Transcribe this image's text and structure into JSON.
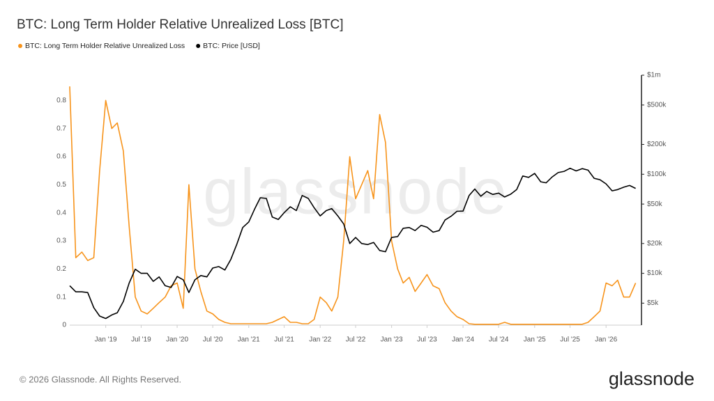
{
  "chart_data": {
    "type": "line",
    "title": "BTC: Long Term Holder Relative Unrealized Loss [BTC]",
    "watermark": "glassnode",
    "footer": "© 2026 Glassnode. All Rights Reserved.",
    "logo": "glassnode",
    "x": [
      "2018-07",
      "2018-08",
      "2018-09",
      "2018-10",
      "2018-11",
      "2018-12",
      "2019-01",
      "2019-02",
      "2019-03",
      "2019-04",
      "2019-05",
      "2019-06",
      "2019-07",
      "2019-08",
      "2019-09",
      "2019-10",
      "2019-11",
      "2019-12",
      "2020-01",
      "2020-02",
      "2020-03",
      "2020-04",
      "2020-05",
      "2020-06",
      "2020-07",
      "2020-08",
      "2020-09",
      "2020-10",
      "2020-11",
      "2020-12",
      "2021-01",
      "2021-02",
      "2021-03",
      "2021-04",
      "2021-05",
      "2021-06",
      "2021-07",
      "2021-08",
      "2021-09",
      "2021-10",
      "2021-11",
      "2021-12",
      "2022-01",
      "2022-02",
      "2022-03",
      "2022-04",
      "2022-05",
      "2022-06",
      "2022-07",
      "2022-08",
      "2022-09",
      "2022-10",
      "2022-11",
      "2022-12",
      "2023-01",
      "2023-02",
      "2023-03",
      "2023-04",
      "2023-05",
      "2023-06",
      "2023-07",
      "2023-08",
      "2023-09",
      "2023-10",
      "2023-11",
      "2023-12",
      "2024-01",
      "2024-02",
      "2024-03",
      "2024-04",
      "2024-05",
      "2024-06",
      "2024-07",
      "2024-08",
      "2024-09",
      "2024-10",
      "2024-11",
      "2024-12",
      "2025-01",
      "2025-02",
      "2025-03",
      "2025-04",
      "2025-05",
      "2025-06",
      "2025-07",
      "2025-08",
      "2025-09",
      "2025-10",
      "2025-11",
      "2025-12",
      "2026-01",
      "2026-02",
      "2026-03",
      "2026-04",
      "2026-05",
      "2026-06"
    ],
    "series": [
      {
        "name": "BTC: Long Term Holder Relative Unrealized Loss",
        "color": "#f7931a",
        "values": [
          0.85,
          0.24,
          0.26,
          0.23,
          0.24,
          0.55,
          0.8,
          0.7,
          0.72,
          0.62,
          0.35,
          0.1,
          0.05,
          0.04,
          0.06,
          0.08,
          0.1,
          0.14,
          0.15,
          0.06,
          0.5,
          0.2,
          0.12,
          0.05,
          0.04,
          0.02,
          0.01,
          0.005,
          0.005,
          0.005,
          0.005,
          0.005,
          0.005,
          0.005,
          0.01,
          0.02,
          0.03,
          0.01,
          0.01,
          0.005,
          0.005,
          0.02,
          0.1,
          0.08,
          0.05,
          0.1,
          0.3,
          0.6,
          0.45,
          0.5,
          0.55,
          0.45,
          0.75,
          0.65,
          0.3,
          0.2,
          0.15,
          0.17,
          0.12,
          0.15,
          0.18,
          0.14,
          0.13,
          0.08,
          0.05,
          0.03,
          0.02,
          0.005,
          0.003,
          0.003,
          0.003,
          0.003,
          0.003,
          0.01,
          0.003,
          0.003,
          0.003,
          0.003,
          0.003,
          0.003,
          0.003,
          0.003,
          0.003,
          0.003,
          0.003,
          0.003,
          0.003,
          0.01,
          0.03,
          0.05,
          0.15,
          0.14,
          0.16,
          0.1,
          0.1,
          0.15
        ]
      },
      {
        "name": "BTC: Price [USD]",
        "color": "#000000",
        "axis": "y2",
        "values": [
          7500,
          6500,
          6500,
          6400,
          4500,
          3700,
          3500,
          3800,
          4000,
          5200,
          8000,
          11000,
          10000,
          10000,
          8300,
          9200,
          7500,
          7200,
          9300,
          8600,
          6400,
          8600,
          9500,
          9200,
          11300,
          11700,
          10800,
          13800,
          19700,
          29000,
          33000,
          45000,
          58000,
          57000,
          37000,
          35000,
          41000,
          47000,
          43000,
          61000,
          57000,
          46000,
          38000,
          43000,
          45000,
          38000,
          31500,
          20000,
          23000,
          20000,
          19500,
          20500,
          17000,
          16500,
          23000,
          23500,
          28500,
          29000,
          27000,
          30500,
          29200,
          26000,
          27000,
          34500,
          37700,
          42300,
          42500,
          61000,
          71000,
          60000,
          67000,
          62500,
          64500,
          59000,
          63000,
          70000,
          96000,
          93000,
          102000,
          84000,
          82000,
          94000,
          104000,
          107000,
          115000,
          108000,
          114000,
          110000,
          91000,
          88000,
          80000,
          68000,
          70000,
          74000,
          77000,
          72000
        ]
      }
    ],
    "xlim": [
      "2018-07",
      "2026-07"
    ],
    "xticks": [
      {
        "value": "2019-01",
        "label": "Jan '19"
      },
      {
        "value": "2019-07",
        "label": "Jul '19"
      },
      {
        "value": "2020-01",
        "label": "Jan '20"
      },
      {
        "value": "2020-07",
        "label": "Jul '20"
      },
      {
        "value": "2021-01",
        "label": "Jan '21"
      },
      {
        "value": "2021-07",
        "label": "Jul '21"
      },
      {
        "value": "2022-01",
        "label": "Jan '22"
      },
      {
        "value": "2022-07",
        "label": "Jul '22"
      },
      {
        "value": "2023-01",
        "label": "Jan '23"
      },
      {
        "value": "2023-07",
        "label": "Jul '23"
      },
      {
        "value": "2024-01",
        "label": "Jan '24"
      },
      {
        "value": "2024-07",
        "label": "Jul '24"
      },
      {
        "value": "2025-01",
        "label": "Jan '25"
      },
      {
        "value": "2025-07",
        "label": "Jul '25"
      },
      {
        "value": "2026-01",
        "label": "Jan '26"
      }
    ],
    "ylim": [
      0,
      0.89
    ],
    "yticks": [
      0,
      0.1,
      0.2,
      0.3,
      0.4,
      0.5,
      0.6,
      0.7,
      0.8
    ],
    "y2lim": [
      3000,
      1000000
    ],
    "y2_scale": "log",
    "y2ticks": [
      {
        "value": 5000,
        "label": "$5k"
      },
      {
        "value": 10000,
        "label": "$10k"
      },
      {
        "value": 20000,
        "label": "$20k"
      },
      {
        "value": 50000,
        "label": "$50k"
      },
      {
        "value": 100000,
        "label": "$100k"
      },
      {
        "value": 200000,
        "label": "$200k"
      },
      {
        "value": 500000,
        "label": "$500k"
      },
      {
        "value": 1000000,
        "label": "$1m"
      }
    ],
    "grid": false
  }
}
